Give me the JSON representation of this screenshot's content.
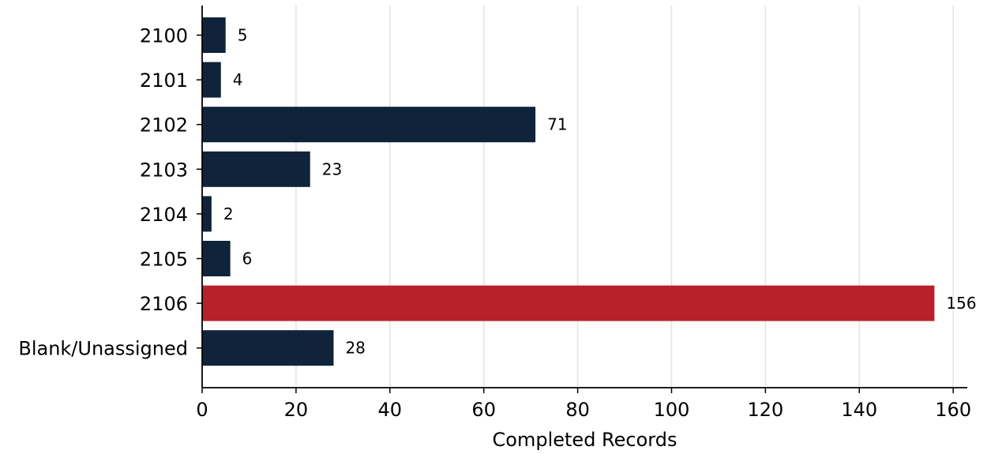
{
  "chart_data": {
    "type": "bar",
    "orientation": "horizontal",
    "categories": [
      "2100",
      "2101",
      "2102",
      "2103",
      "2104",
      "2105",
      "2106",
      "Blank/Unassigned"
    ],
    "values": [
      5,
      4,
      71,
      23,
      2,
      6,
      156,
      28
    ],
    "highlight_category": "2106",
    "title": "",
    "xlabel": "Completed Records",
    "ylabel": "",
    "xlim": [
      0,
      163
    ],
    "xticks": [
      0,
      20,
      40,
      60,
      80,
      100,
      120,
      140,
      160
    ],
    "grid": "vertical",
    "legend": "none",
    "colors": {
      "bar": "#0f233a",
      "highlight": "#b8212a",
      "grid": "#e3e3e3",
      "axis": "#000000"
    }
  }
}
